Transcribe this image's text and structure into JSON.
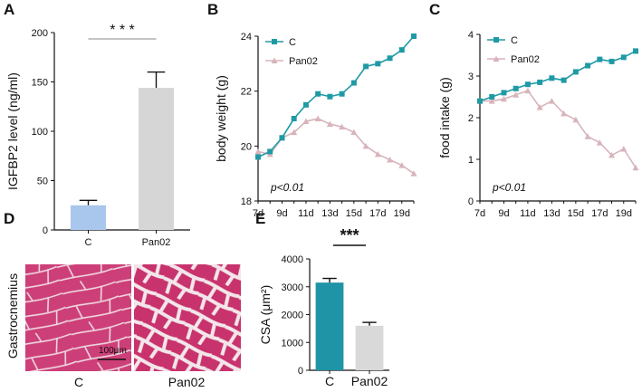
{
  "panels": {
    "A": "A",
    "B": "B",
    "C": "C",
    "D": "D",
    "E": "E"
  },
  "colors": {
    "control_bar_A": "#a9c6ec",
    "pan02_bar_A": "#d6d6d6",
    "control_line": "#1f9aa5",
    "pan02_line": "#d8b4bb",
    "control_bar_E": "#1f94a6",
    "pan02_bar_E": "#d9d9d9"
  },
  "chart_data": [
    {
      "id": "A",
      "type": "bar",
      "ylabel": "IGFBP2 level (ng/ml)",
      "categories": [
        "C",
        "Pan02"
      ],
      "values": [
        25,
        144
      ],
      "errors": [
        5,
        16
      ],
      "ylim": [
        0,
        200
      ],
      "yticks": [
        "0",
        "50",
        "100",
        "150",
        "200"
      ],
      "significance": "* * *"
    },
    {
      "id": "B",
      "type": "line",
      "ylabel": "body weight (g)",
      "x": [
        7,
        8,
        9,
        10,
        11,
        12,
        13,
        14,
        15,
        16,
        17,
        18,
        19,
        20
      ],
      "xticks": [
        "7d",
        "9d",
        "11d",
        "13d",
        "15d",
        "17d",
        "19d"
      ],
      "xtick_values": [
        7,
        9,
        11,
        13,
        15,
        17,
        19
      ],
      "ylim": [
        18,
        24
      ],
      "yticks": [
        "18",
        "20",
        "22",
        "24"
      ],
      "series": [
        {
          "name": "C",
          "values": [
            19.6,
            19.8,
            20.3,
            21.0,
            21.5,
            21.9,
            21.8,
            21.9,
            22.3,
            22.9,
            23.0,
            23.2,
            23.5,
            24.0
          ]
        },
        {
          "name": "Pan02",
          "values": [
            19.8,
            19.7,
            20.3,
            20.5,
            20.9,
            21.0,
            20.8,
            20.7,
            20.5,
            20.0,
            19.7,
            19.5,
            19.3,
            19.0
          ]
        }
      ],
      "annotation": "p<0.01"
    },
    {
      "id": "C",
      "type": "line",
      "ylabel": "food intake (g)",
      "x": [
        7,
        8,
        9,
        10,
        11,
        12,
        13,
        14,
        15,
        16,
        17,
        18,
        19,
        20
      ],
      "xticks": [
        "7d",
        "9d",
        "11d",
        "13d",
        "15d",
        "17d",
        "19d"
      ],
      "xtick_values": [
        7,
        9,
        11,
        13,
        15,
        17,
        19
      ],
      "ylim": [
        0,
        4
      ],
      "yticks": [
        "0",
        "1",
        "2",
        "3",
        "4"
      ],
      "series": [
        {
          "name": "C",
          "values": [
            2.4,
            2.5,
            2.6,
            2.7,
            2.8,
            2.85,
            2.95,
            2.9,
            3.1,
            3.25,
            3.4,
            3.35,
            3.45,
            3.6
          ]
        },
        {
          "name": "Pan02",
          "values": [
            2.4,
            2.4,
            2.45,
            2.55,
            2.65,
            2.25,
            2.4,
            2.1,
            1.95,
            1.55,
            1.4,
            1.1,
            1.25,
            0.8
          ]
        }
      ],
      "annotation": "p<0.01"
    },
    {
      "id": "E",
      "type": "bar",
      "ylabel": "CSA (μm²)",
      "categories": [
        "C",
        "Pan02"
      ],
      "values": [
        3150,
        1600
      ],
      "errors": [
        150,
        120
      ],
      "ylim": [
        0,
        4000
      ],
      "yticks": [
        "0",
        "1000",
        "2000",
        "3000",
        "4000"
      ],
      "significance": "***"
    }
  ],
  "panel_d": {
    "side_label": "Gastrocnemius",
    "scale_bar": "100μm",
    "labels": [
      "C",
      "Pan02"
    ]
  }
}
